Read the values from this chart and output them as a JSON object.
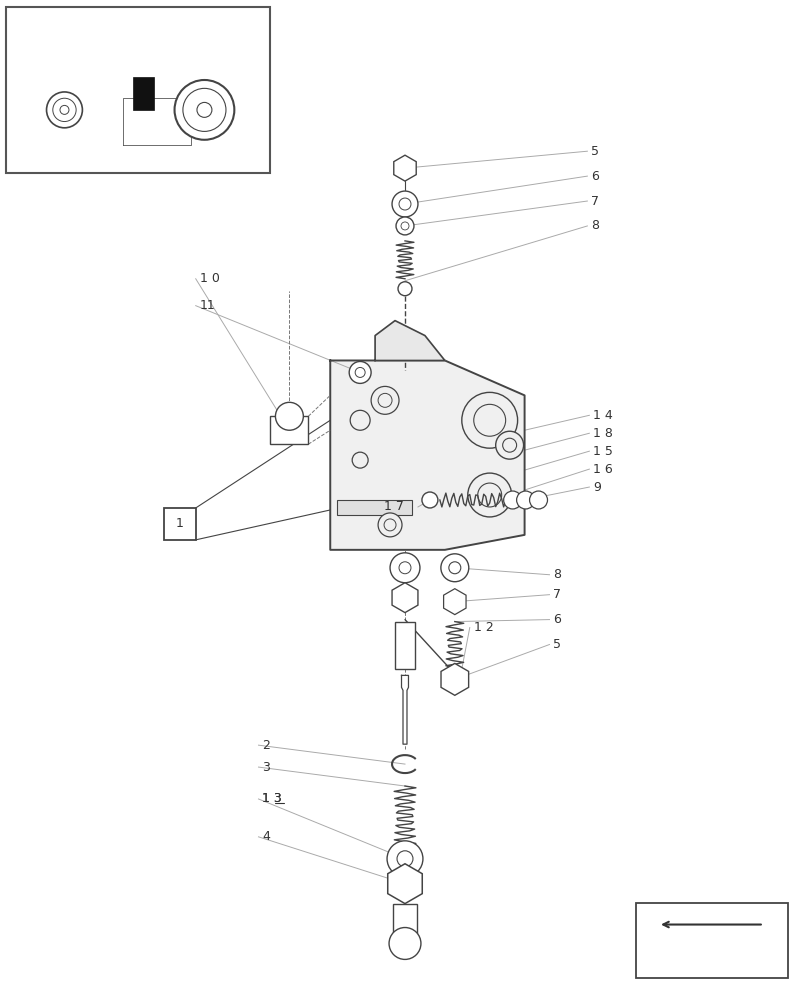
{
  "bg_color": "#ffffff",
  "fig_width": 8.08,
  "fig_height": 10.0,
  "dpi": 100,
  "lc": "#444444",
  "lc_light": "#aaaaaa"
}
